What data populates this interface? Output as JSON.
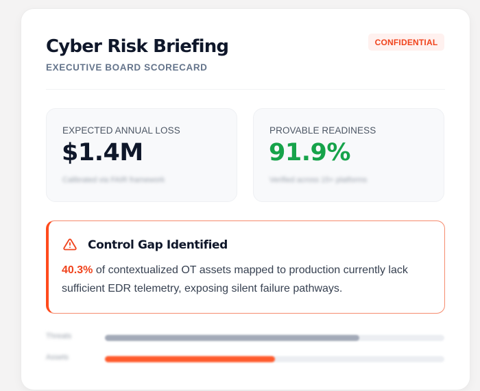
{
  "header": {
    "title": "Cyber Risk Briefing",
    "subtitle": "EXECUTIVE BOARD SCORECARD",
    "badge": "CONFIDENTIAL"
  },
  "metrics": [
    {
      "label": "EXPECTED ANNUAL LOSS",
      "value": "$1.4M",
      "note": "Calibrated via FAIR framework",
      "color": "#0f172a"
    },
    {
      "label": "PROVABLE READINESS",
      "value": "91.9%",
      "note": "Verified across 15+ platforms",
      "color": "#16a34a"
    }
  ],
  "alert": {
    "icon": "warning-triangle-icon",
    "title": "Control Gap Identified",
    "highlight": "40.3%",
    "body": " of contextualized OT assets mapped to production currently lack sufficient EDR telemetry, exposing silent failure pathways.",
    "accent_color": "#ff4a1c"
  },
  "bars": [
    {
      "label": "Threats",
      "percent": 75,
      "color": "#a3aab8"
    },
    {
      "label": "Assets",
      "percent": 50,
      "color": "#ff5a2c"
    }
  ],
  "colors": {
    "accent": "#f0431c",
    "positive": "#16a34a",
    "text_primary": "#0f172a",
    "text_muted": "#64748b"
  }
}
